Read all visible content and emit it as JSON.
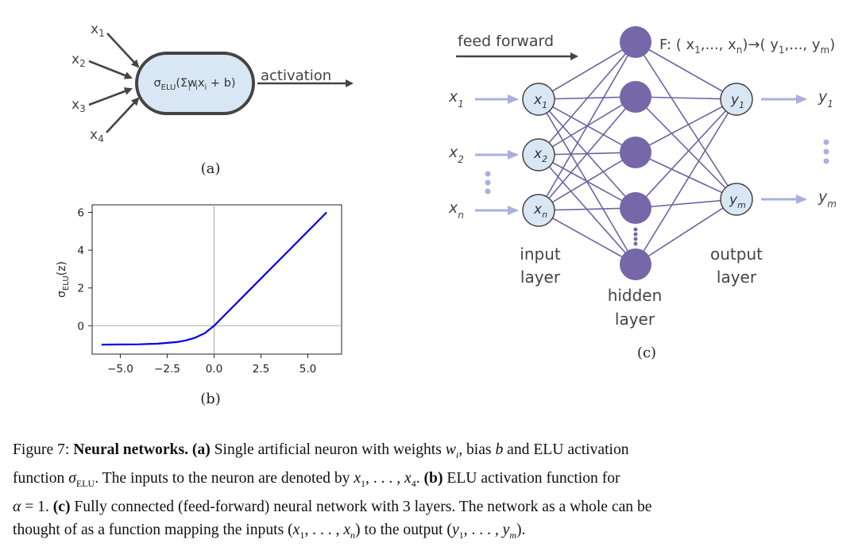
{
  "panel_a": {
    "inputs": [
      "x",
      "x",
      "x",
      "x"
    ],
    "input_subs": [
      "1",
      "2",
      "3",
      "4"
    ],
    "node_sigma": "σ",
    "node_sigma_sub": "ELU",
    "node_mid": "(Σw",
    "node_sum_sub": "i",
    "node_w_sub": "i",
    "node_x": "x",
    "node_x_sub": "i",
    "node_end": " + b)",
    "output_label": "activation",
    "label": "(a)"
  },
  "panel_b": {
    "label": "(b)",
    "ylabel_sigma": "σ",
    "ylabel_sub": "ELU",
    "ylabel_arg": "(z)"
  },
  "panel_c": {
    "feed_forward": "feed forward",
    "function_label": "F: ( x",
    "function_sub1": "1",
    "function_mid1": ",...,",
    "function_x": " x",
    "function_subn": "n",
    "function_close1": ")",
    "function_arrow": "→",
    "function_y": "( y",
    "function_suby1": "1",
    "function_mid2": ",...,",
    "function_ym": " y",
    "function_subm": "m",
    "function_close2": ")",
    "input_labels": [
      "x",
      "x",
      "x"
    ],
    "input_subs": [
      "1",
      "2",
      "n"
    ],
    "input_node_labels": [
      "x",
      "x",
      "x"
    ],
    "input_node_subs": [
      "1",
      "2",
      "n"
    ],
    "output_node_labels": [
      "y",
      "y"
    ],
    "output_node_subs": [
      "1",
      "m"
    ],
    "output_labels": [
      "y",
      "y"
    ],
    "output_subs": [
      "1",
      "m"
    ],
    "input_layer": [
      "input",
      "layer"
    ],
    "hidden_layer": [
      "hidden",
      "layer"
    ],
    "output_layer": [
      "output",
      "layer"
    ],
    "label": "(c)",
    "colors": {
      "node_light": "#d9e7f4",
      "node_hidden": "#7567a8",
      "edge": "#6c63a4",
      "arrow": "#a9afe0"
    }
  },
  "chart_data": {
    "type": "line",
    "title": "",
    "xlabel": "",
    "ylabel": "σELU(z)",
    "xlim": [
      -6.5,
      6.8
    ],
    "ylim": [
      -1.5,
      6.4
    ],
    "x_ticks": [
      "−5.0",
      "−2.5",
      "0.0",
      "2.5",
      "5.0"
    ],
    "x_tick_values": [
      -5.0,
      -2.5,
      0.0,
      2.5,
      5.0
    ],
    "y_ticks": [
      "0",
      "2",
      "4",
      "6"
    ],
    "y_tick_values": [
      0,
      2,
      4,
      6
    ],
    "grid": false,
    "reference_lines": {
      "x": 0,
      "y": 0
    },
    "series": [
      {
        "color": "#0000ee",
        "function": "ELU, alpha = 1",
        "x": [
          -6,
          -5,
          -4,
          -3,
          -2,
          -1.5,
          -1,
          -0.5,
          0,
          1,
          2,
          3,
          4,
          5,
          6
        ],
        "y": [
          -0.998,
          -0.993,
          -0.982,
          -0.95,
          -0.865,
          -0.777,
          -0.632,
          -0.393,
          0,
          1,
          2,
          3,
          4,
          5,
          6
        ]
      }
    ]
  },
  "caption": {
    "line1_a": "Figure 7: ",
    "line1_b": "Neural networks.",
    "line1_c": "  ",
    "line1_d": "(a)",
    "line1_e": " Single artificial neuron with weights ",
    "line1_f": "w",
    "line1_g": "i",
    "line1_h": ", bias ",
    "line1_i": "b",
    "line1_j": " and ELU activation",
    "line2_a": "function ",
    "line2_b": "σ",
    "line2_c": "ELU",
    "line2_d": ".  The inputs to the neuron are denoted by ",
    "line2_e": "x",
    "line2_f": "1",
    "line2_g": ", . . . , ",
    "line2_h": "x",
    "line2_i": "4",
    "line2_j": ".  ",
    "line2_k": "(b)",
    "line2_l": " ELU activation function for",
    "line3_a": "α",
    "line3_b": " = 1.  ",
    "line3_c": "(c)",
    "line3_d": " Fully connected (feed-forward) neural network with 3 layers.  The network as a whole can be",
    "line4_a": "thought of as a function mapping the inputs (",
    "line4_b": "x",
    "line4_c": "1",
    "line4_d": ", . . . , ",
    "line4_e": "x",
    "line4_f": "n",
    "line4_g": ") to the output (",
    "line4_h": "y",
    "line4_i": "1",
    "line4_j": ", . . . , ",
    "line4_k": "y",
    "line4_l": "m",
    "line4_m": ")."
  }
}
